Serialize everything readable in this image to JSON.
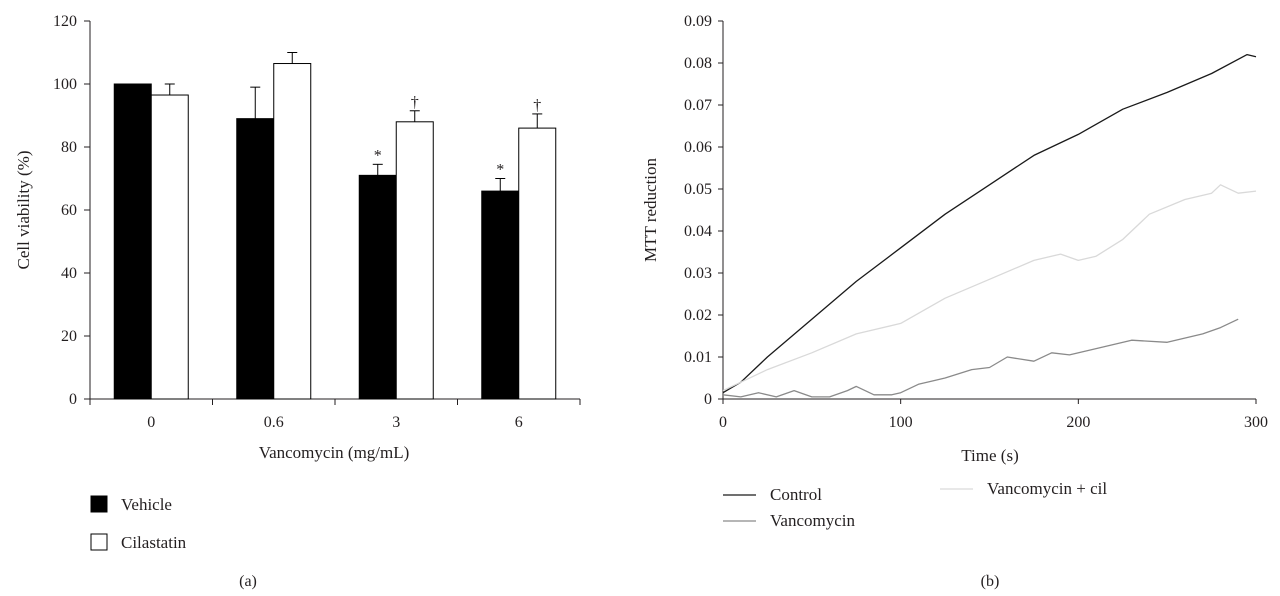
{
  "chart_data": [
    {
      "type": "bar",
      "panel_label": "(a)",
      "categories": [
        "0",
        "0.6",
        "3",
        "6"
      ],
      "xlabel": "Vancomycin (mg/mL)",
      "ylabel": "Cell viability (%)",
      "ylim": [
        0,
        120
      ],
      "yticks": [
        "0",
        "20",
        "40",
        "60",
        "80",
        "100",
        "120"
      ],
      "series": [
        {
          "name": "Vehicle",
          "color": "#000000",
          "values": [
            100,
            89,
            71,
            66
          ],
          "errors": [
            0,
            10,
            3.5,
            4
          ],
          "markers": [
            "",
            "",
            "*",
            "*"
          ]
        },
        {
          "name": "Cilastatin",
          "color": "#ffffff",
          "values": [
            96.5,
            106.5,
            88,
            86
          ],
          "errors": [
            3.5,
            3.5,
            3.5,
            4.5
          ],
          "markers": [
            "",
            "",
            "†",
            "†"
          ]
        }
      ],
      "legend_position": "below-left"
    },
    {
      "type": "line",
      "panel_label": "(b)",
      "xlabel": "Time (s)",
      "ylabel": "MTT reduction",
      "xlim": [
        0,
        300
      ],
      "ylim": [
        0,
        0.09
      ],
      "xticks": [
        "0",
        "100",
        "200",
        "300"
      ],
      "yticks": [
        "0",
        "0.01",
        "0.02",
        "0.03",
        "0.04",
        "0.05",
        "0.06",
        "0.07",
        "0.08",
        "0.09"
      ],
      "series": [
        {
          "name": "Control",
          "color": "#1a1a1a",
          "x": [
            0,
            10,
            25,
            50,
            75,
            100,
            125,
            150,
            175,
            200,
            225,
            250,
            275,
            295,
            300
          ],
          "y": [
            0.0015,
            0.004,
            0.01,
            0.019,
            0.028,
            0.036,
            0.044,
            0.051,
            0.058,
            0.063,
            0.069,
            0.073,
            0.0775,
            0.082,
            0.0815
          ]
        },
        {
          "name": "Vancomycin",
          "color": "#8a8a8a",
          "x": [
            0,
            10,
            20,
            30,
            40,
            50,
            60,
            70,
            75,
            85,
            95,
            100,
            110,
            125,
            140,
            150,
            160,
            175,
            185,
            195,
            210,
            230,
            250,
            270,
            280,
            290
          ],
          "y": [
            0.001,
            0.0005,
            0.0015,
            0.0005,
            0.002,
            0.0005,
            0.0005,
            0.002,
            0.003,
            0.001,
            0.001,
            0.0015,
            0.0035,
            0.005,
            0.007,
            0.0075,
            0.01,
            0.009,
            0.011,
            0.0105,
            0.012,
            0.014,
            0.0135,
            0.0155,
            0.017,
            0.019
          ]
        },
        {
          "name": "Vancomycin + cil",
          "color": "#d9d9d9",
          "x": [
            0,
            10,
            25,
            50,
            75,
            100,
            125,
            150,
            175,
            190,
            200,
            210,
            225,
            240,
            260,
            275,
            280,
            290,
            300
          ],
          "y": [
            0.002,
            0.004,
            0.007,
            0.011,
            0.0155,
            0.018,
            0.024,
            0.0285,
            0.033,
            0.0345,
            0.033,
            0.034,
            0.038,
            0.044,
            0.0475,
            0.049,
            0.051,
            0.049,
            0.0495
          ]
        }
      ],
      "legend_position": "below-left"
    }
  ]
}
